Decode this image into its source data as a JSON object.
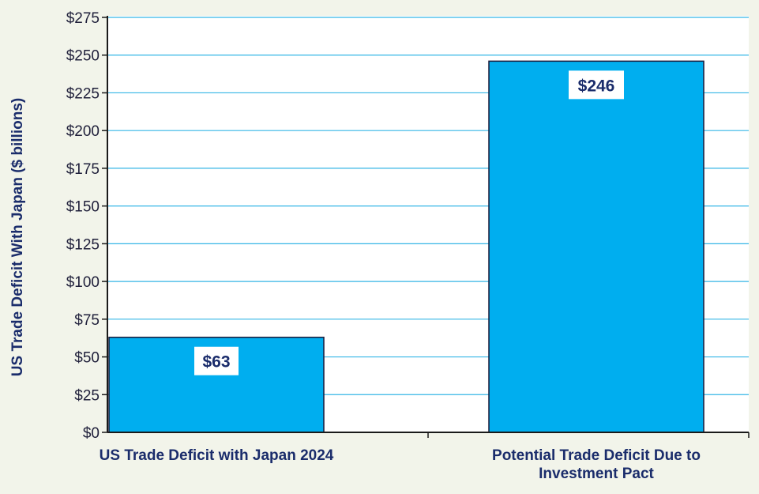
{
  "chart_data": {
    "type": "bar",
    "title": "",
    "xlabel": "",
    "ylabel": "US Trade Deficit With Japan ($ billions)",
    "categories": [
      [
        "US Trade Deficit with Japan 2024"
      ],
      [
        "Potential Trade Deficit Due to",
        "Investment Pact"
      ]
    ],
    "values": [
      63,
      246
    ],
    "data_labels": [
      "$63",
      "$246"
    ],
    "ylim": [
      0,
      275
    ],
    "yticks": [
      0,
      25,
      50,
      75,
      100,
      125,
      150,
      175,
      200,
      225,
      250,
      275
    ],
    "ytick_labels": [
      "$0",
      "$25",
      "$50",
      "$75",
      "$100",
      "$125",
      "$150",
      "$175",
      "$200",
      "$225",
      "$250",
      "$275"
    ],
    "grid": true,
    "colors": {
      "bar_fill": "#00aeef",
      "bar_stroke": "#1a1a3a",
      "grid": "#35b6e6",
      "axis": "#1a1a1a",
      "text": "#1a2c6b",
      "plot_bg": "#ffffff",
      "page_bg": "#f2f4ea"
    }
  }
}
